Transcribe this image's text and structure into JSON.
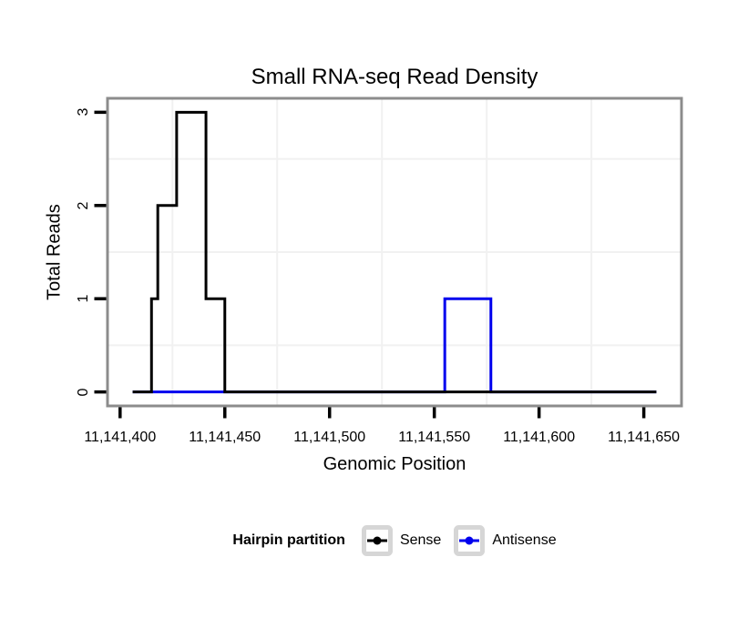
{
  "title": "Small RNA-seq Read Density",
  "chart_data": {
    "type": "line",
    "subtype": "step",
    "title": "Small RNA-seq Read Density",
    "xlabel": "Genomic Position",
    "ylabel": "Total Reads",
    "xlim": [
      11141394,
      11141668
    ],
    "ylim": [
      -0.15,
      3.15
    ],
    "x_ticks": {
      "values": [
        11141400,
        11141450,
        11141500,
        11141550,
        11141600,
        11141650
      ],
      "labels": [
        "11,141,400",
        "11,141,450",
        "11,141,500",
        "11,141,550",
        "11,141,600",
        "11,141,650"
      ]
    },
    "y_ticks": {
      "values": [
        0,
        1,
        2,
        3
      ],
      "labels": [
        "0",
        "1",
        "2",
        "3"
      ]
    },
    "x_minor_gridlines": [
      11141425,
      11141475,
      11141525,
      11141575,
      11141625
    ],
    "y_minor_gridlines": [
      0.5,
      1.5,
      2.5
    ],
    "grid": "minor-only",
    "legend_position": "bottom",
    "series": [
      {
        "name": "Sense",
        "color": "#000000",
        "points": [
          [
            11141406,
            0
          ],
          [
            11141415,
            0
          ],
          [
            11141415,
            1
          ],
          [
            11141418,
            1
          ],
          [
            11141418,
            2
          ],
          [
            11141427,
            2
          ],
          [
            11141427,
            3
          ],
          [
            11141441,
            3
          ],
          [
            11141441,
            1
          ],
          [
            11141450,
            1
          ],
          [
            11141450,
            0
          ],
          [
            11141656,
            0
          ]
        ]
      },
      {
        "name": "Antisense",
        "color": "#0000EE",
        "points": [
          [
            11141406,
            0
          ],
          [
            11141555,
            0
          ],
          [
            11141555,
            1
          ],
          [
            11141577,
            1
          ],
          [
            11141577,
            0
          ],
          [
            11141656,
            0
          ]
        ]
      }
    ]
  },
  "legend": {
    "title": "Hairpin partition",
    "entries": [
      {
        "label": "Sense",
        "color": "#000000"
      },
      {
        "label": "Antisense",
        "color": "#0000EE"
      }
    ]
  },
  "colors": {
    "panel_border": "#8C8C8C",
    "grid_minor": "#F1F1F1",
    "tick_mark": "#000000",
    "legend_key_border": "#D6D6D6",
    "legend_key_fill": "#FFFFFF"
  }
}
